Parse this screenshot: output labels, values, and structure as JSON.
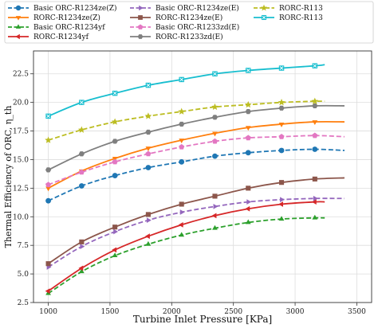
{
  "chart_data": {
    "type": "line",
    "title": "",
    "xlabel": "Turbine Inlet Pressure [KPa]",
    "ylabel": "Thermal Efficiency of ORC, η_th",
    "xlim": [
      880,
      3620
    ],
    "ylim": [
      2.5,
      24.5
    ],
    "xticks": [
      1000,
      1500,
      2000,
      2500,
      3000,
      3500
    ],
    "yticks": [
      2.5,
      5.0,
      7.5,
      10.0,
      12.5,
      15.0,
      17.5,
      20.0,
      22.5
    ],
    "ytick_labels": [
      "2.5",
      "5.0",
      "7.5",
      "10.0",
      "12.5",
      "15.0",
      "17.5",
      "20.0",
      "22.5"
    ],
    "grid": true,
    "legend_position": "top",
    "series": [
      {
        "name": "Basic ORC-R1234ze(Z)",
        "color": "#1f77b4",
        "dash": "dashed",
        "marker": "circle",
        "x": [
          1000,
          1270,
          1540,
          1810,
          2080,
          2350,
          2620,
          2890,
          3160,
          3400
        ],
        "y": [
          11.4,
          12.7,
          13.6,
          14.3,
          14.8,
          15.3,
          15.6,
          15.8,
          15.9,
          15.8
        ]
      },
      {
        "name": "RORC-R1234ze(Z)",
        "color": "#ff7f0e",
        "dash": "solid",
        "marker": "triangle-down",
        "x": [
          1000,
          1270,
          1540,
          1810,
          2080,
          2350,
          2620,
          2890,
          3160,
          3400
        ],
        "y": [
          12.5,
          14.0,
          15.1,
          16.0,
          16.7,
          17.3,
          17.8,
          18.1,
          18.3,
          18.3
        ]
      },
      {
        "name": "Basic ORC-R1234yf",
        "color": "#2ca02c",
        "dash": "dashed",
        "marker": "triangle-up",
        "x": [
          1000,
          1270,
          1540,
          1810,
          2080,
          2350,
          2620,
          2890,
          3160,
          3240
        ],
        "y": [
          3.3,
          5.2,
          6.6,
          7.6,
          8.4,
          9.0,
          9.5,
          9.8,
          9.9,
          9.9
        ]
      },
      {
        "name": "RORC-R1234yf",
        "color": "#d62728",
        "dash": "solid",
        "marker": "triangle-left",
        "x": [
          1000,
          1270,
          1540,
          1810,
          2080,
          2350,
          2620,
          2890,
          3160,
          3240
        ],
        "y": [
          3.5,
          5.5,
          7.1,
          8.3,
          9.3,
          10.1,
          10.7,
          11.1,
          11.3,
          11.3
        ]
      },
      {
        "name": "Basic ORC-R1234ze(E)",
        "color": "#9467bd",
        "dash": "dashed",
        "marker": "triangle-right",
        "x": [
          1000,
          1270,
          1540,
          1810,
          2080,
          2350,
          2620,
          2890,
          3160,
          3400
        ],
        "y": [
          5.6,
          7.4,
          8.7,
          9.7,
          10.4,
          10.9,
          11.3,
          11.5,
          11.6,
          11.6
        ]
      },
      {
        "name": "RORC-R1234ze(E)",
        "color": "#8c564b",
        "dash": "solid",
        "marker": "square",
        "x": [
          1000,
          1270,
          1540,
          1810,
          2080,
          2350,
          2620,
          2890,
          3160,
          3400
        ],
        "y": [
          5.9,
          7.8,
          9.1,
          10.2,
          11.1,
          11.8,
          12.5,
          13.0,
          13.3,
          13.4
        ]
      },
      {
        "name": "Basic ORC-R1233zd(E)",
        "color": "#e377c2",
        "dash": "dashed",
        "marker": "pentagon",
        "x": [
          1000,
          1270,
          1540,
          1810,
          2080,
          2350,
          2620,
          2890,
          3160,
          3400
        ],
        "y": [
          12.8,
          13.9,
          14.8,
          15.5,
          16.1,
          16.6,
          16.9,
          17.0,
          17.1,
          17.0
        ]
      },
      {
        "name": "RORC-R1233zd(E)",
        "color": "#7f7f7f",
        "dash": "solid",
        "marker": "hexagon",
        "x": [
          1000,
          1270,
          1540,
          1810,
          2080,
          2350,
          2620,
          2890,
          3160,
          3400
        ],
        "y": [
          14.1,
          15.5,
          16.6,
          17.4,
          18.1,
          18.7,
          19.2,
          19.5,
          19.7,
          19.7
        ]
      },
      {
        "name": "RORC-R113",
        "color": "#bcbd22",
        "dash": "dashed",
        "marker": "star",
        "x": [
          1000,
          1270,
          1540,
          1810,
          2080,
          2350,
          2620,
          2890,
          3160,
          3240
        ],
        "y": [
          16.7,
          17.6,
          18.3,
          18.8,
          19.2,
          19.6,
          19.8,
          20.0,
          20.1,
          20.1
        ]
      },
      {
        "name": "RORC-R113",
        "color": "#17becf",
        "dash": "solid",
        "marker": "x-square",
        "x": [
          1000,
          1270,
          1540,
          1810,
          2080,
          2350,
          2620,
          2890,
          3160,
          3240
        ],
        "y": [
          18.8,
          20.0,
          20.8,
          21.5,
          22.0,
          22.5,
          22.8,
          23.0,
          23.2,
          23.3
        ]
      }
    ]
  }
}
